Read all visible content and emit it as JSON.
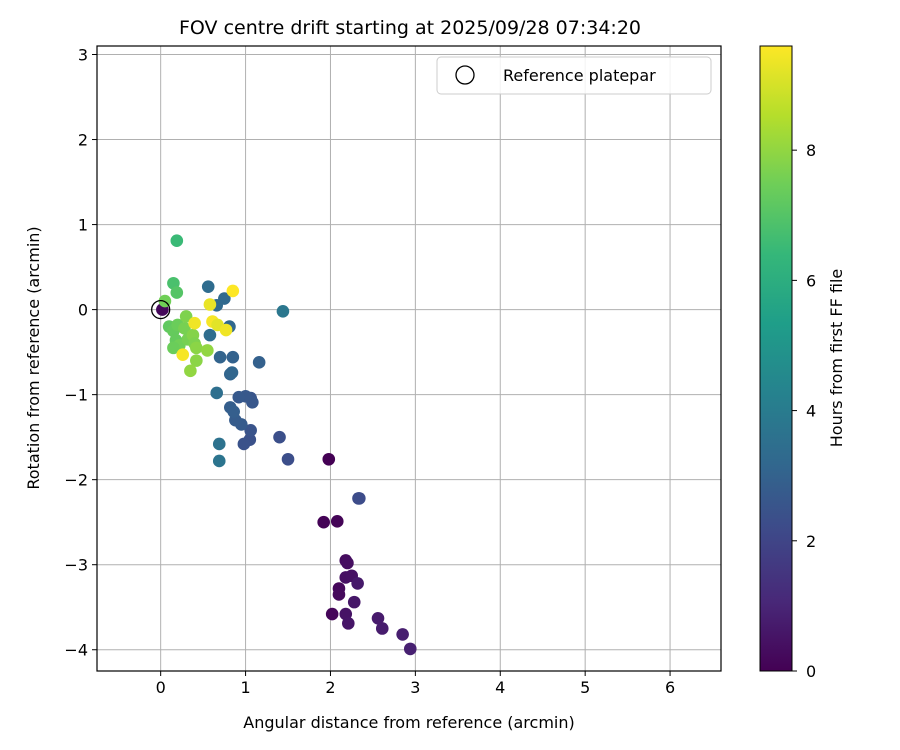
{
  "chart_data": {
    "type": "scatter",
    "title": "FOV centre drift starting at 2025/09/28 07:34:20",
    "xlabel": "Angular distance from reference (arcmin)",
    "ylabel": "Rotation from reference (arcmin)",
    "xlim": [
      -0.75,
      6.6
    ],
    "ylim": [
      -4.25,
      3.1
    ],
    "xticks": [
      0,
      1,
      2,
      3,
      4,
      5,
      6
    ],
    "yticks": [
      -4,
      -3,
      -2,
      -1,
      0,
      1,
      2,
      3
    ],
    "x_tick_labels": [
      "0",
      "1",
      "2",
      "3",
      "4",
      "5",
      "6"
    ],
    "y_tick_labels": [
      "−4",
      "−3",
      "−2",
      "−1",
      "0",
      "1",
      "2",
      "3"
    ],
    "grid": true,
    "legend": {
      "position": "top-right",
      "label": "Reference platepar"
    },
    "reference_point": {
      "x": 0,
      "y": 0
    },
    "colorbar": {
      "label": "Hours from first FF file",
      "colormap": "viridis",
      "range": [
        0,
        9.6
      ],
      "ticks": [
        0,
        2,
        4,
        6,
        8
      ],
      "tick_labels": [
        "0",
        "2",
        "4",
        "6",
        "8"
      ]
    },
    "colormap_stops": [
      "#440154",
      "#482878",
      "#3e4989",
      "#31688e",
      "#26828e",
      "#1f9e89",
      "#35b779",
      "#6ece58",
      "#b5de2b",
      "#fde725"
    ],
    "points": [
      {
        "x": 1.98,
        "y": -1.76,
        "c": 0.0
      },
      {
        "x": 1.92,
        "y": -2.5,
        "c": 0.05
      },
      {
        "x": 2.08,
        "y": -2.49,
        "c": 0.1
      },
      {
        "x": 2.02,
        "y": -3.58,
        "c": 0.15
      },
      {
        "x": 2.1,
        "y": -3.28,
        "c": 0.2
      },
      {
        "x": 2.1,
        "y": -3.35,
        "c": 0.25
      },
      {
        "x": 2.18,
        "y": -2.95,
        "c": 0.3
      },
      {
        "x": 2.2,
        "y": -2.98,
        "c": 0.35
      },
      {
        "x": 2.18,
        "y": -3.15,
        "c": 0.4
      },
      {
        "x": 2.25,
        "y": -3.13,
        "c": 0.45
      },
      {
        "x": 2.18,
        "y": -3.58,
        "c": 0.5
      },
      {
        "x": 2.21,
        "y": -3.69,
        "c": 0.55
      },
      {
        "x": 2.28,
        "y": -3.44,
        "c": 0.6
      },
      {
        "x": 2.32,
        "y": -3.22,
        "c": 0.65
      },
      {
        "x": 2.56,
        "y": -3.63,
        "c": 0.7
      },
      {
        "x": 2.61,
        "y": -3.75,
        "c": 0.75
      },
      {
        "x": 2.85,
        "y": -3.82,
        "c": 0.8
      },
      {
        "x": 2.94,
        "y": -3.99,
        "c": 0.85
      },
      {
        "x": 2.33,
        "y": -2.22,
        "c": 2.2
      },
      {
        "x": 2.34,
        "y": -2.22,
        "c": 2.25
      },
      {
        "x": 1.5,
        "y": -1.76,
        "c": 2.3
      },
      {
        "x": 1.4,
        "y": -1.5,
        "c": 2.35
      },
      {
        "x": 1.05,
        "y": -1.53,
        "c": 2.4
      },
      {
        "x": 0.98,
        "y": -1.58,
        "c": 2.45
      },
      {
        "x": 1.06,
        "y": -1.42,
        "c": 2.5
      },
      {
        "x": 1.06,
        "y": -1.04,
        "c": 2.55
      },
      {
        "x": 1.08,
        "y": -1.09,
        "c": 2.6
      },
      {
        "x": 1.0,
        "y": -1.02,
        "c": 2.65
      },
      {
        "x": 0.92,
        "y": -1.03,
        "c": 2.7
      },
      {
        "x": 0.95,
        "y": -1.35,
        "c": 2.75
      },
      {
        "x": 0.88,
        "y": -1.3,
        "c": 2.8
      },
      {
        "x": 0.82,
        "y": -1.15,
        "c": 2.85
      },
      {
        "x": 0.86,
        "y": -1.2,
        "c": 2.9
      },
      {
        "x": 1.16,
        "y": -0.62,
        "c": 2.95
      },
      {
        "x": 0.85,
        "y": -0.56,
        "c": 3.0
      },
      {
        "x": 0.7,
        "y": -0.56,
        "c": 3.05
      },
      {
        "x": 0.82,
        "y": -0.76,
        "c": 3.1
      },
      {
        "x": 0.84,
        "y": -0.74,
        "c": 3.15
      },
      {
        "x": 0.81,
        "y": -0.2,
        "c": 3.2
      },
      {
        "x": 0.75,
        "y": 0.13,
        "c": 3.25
      },
      {
        "x": 0.66,
        "y": 0.05,
        "c": 3.3
      },
      {
        "x": 0.56,
        "y": 0.27,
        "c": 3.35
      },
      {
        "x": 0.58,
        "y": -0.3,
        "c": 3.4
      },
      {
        "x": 0.66,
        "y": -0.98,
        "c": 3.5
      },
      {
        "x": 0.69,
        "y": -1.58,
        "c": 3.6
      },
      {
        "x": 0.69,
        "y": -1.78,
        "c": 3.7
      },
      {
        "x": 1.44,
        "y": -0.02,
        "c": 3.8
      },
      {
        "x": 0.02,
        "y": 0.0,
        "c": 0.2
      },
      {
        "x": 0.19,
        "y": 0.81,
        "c": 6.5
      },
      {
        "x": 0.15,
        "y": 0.31,
        "c": 6.8
      },
      {
        "x": 0.19,
        "y": 0.2,
        "c": 7.0
      },
      {
        "x": 0.05,
        "y": 0.1,
        "c": 7.5
      },
      {
        "x": 0.1,
        "y": -0.2,
        "c": 7.2
      },
      {
        "x": 0.15,
        "y": -0.25,
        "c": 7.3
      },
      {
        "x": 0.2,
        "y": -0.18,
        "c": 7.4
      },
      {
        "x": 0.28,
        "y": -0.22,
        "c": 7.6
      },
      {
        "x": 0.3,
        "y": -0.08,
        "c": 7.7
      },
      {
        "x": 0.18,
        "y": -0.36,
        "c": 7.3
      },
      {
        "x": 0.22,
        "y": -0.42,
        "c": 7.5
      },
      {
        "x": 0.15,
        "y": -0.45,
        "c": 7.4
      },
      {
        "x": 0.32,
        "y": -0.35,
        "c": 7.6
      },
      {
        "x": 0.38,
        "y": -0.3,
        "c": 7.8
      },
      {
        "x": 0.4,
        "y": -0.4,
        "c": 7.7
      },
      {
        "x": 0.42,
        "y": -0.45,
        "c": 7.9
      },
      {
        "x": 0.55,
        "y": -0.48,
        "c": 8.0
      },
      {
        "x": 0.42,
        "y": -0.6,
        "c": 7.9
      },
      {
        "x": 0.35,
        "y": -0.72,
        "c": 8.0
      },
      {
        "x": 0.26,
        "y": -0.53,
        "c": 9.5
      },
      {
        "x": 0.4,
        "y": -0.16,
        "c": 9.4
      },
      {
        "x": 0.58,
        "y": 0.06,
        "c": 9.3
      },
      {
        "x": 0.61,
        "y": -0.14,
        "c": 9.5
      },
      {
        "x": 0.67,
        "y": -0.18,
        "c": 9.2
      },
      {
        "x": 0.77,
        "y": -0.24,
        "c": 9.4
      },
      {
        "x": 0.85,
        "y": 0.22,
        "c": 9.6
      }
    ]
  }
}
